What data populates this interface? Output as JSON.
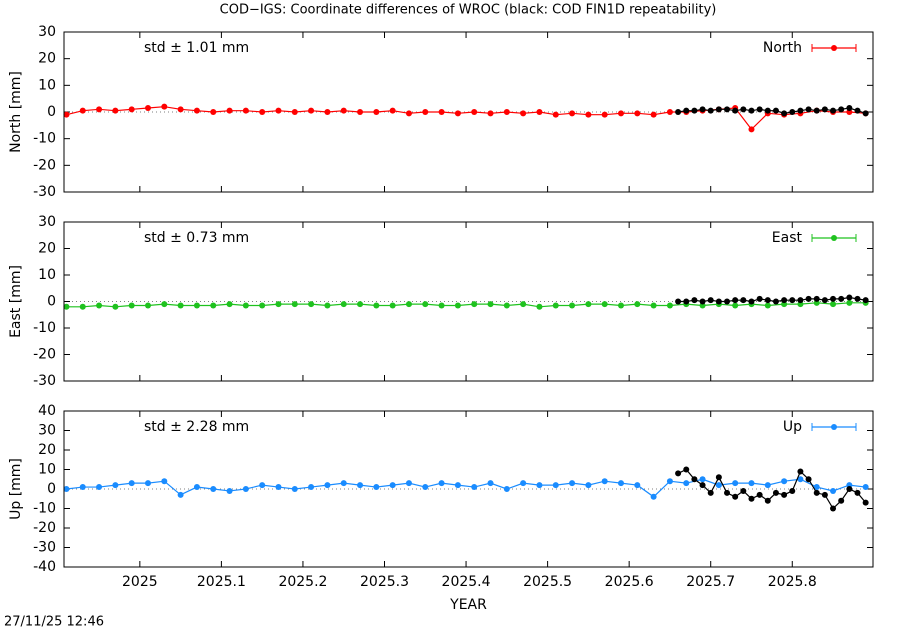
{
  "title": "COD−IGS: Coordinate differences of WROC (black: COD FIN1D repeatability)",
  "timestamp": "27/11/25 12:46",
  "chart_data": [
    {
      "type": "line",
      "ylabel": "North [mm]",
      "annotation": "std ± 1.01 mm",
      "legend": "top-right",
      "xlim": [
        2024.907,
        2025.899
      ],
      "ylim": [
        -30,
        30
      ],
      "yticks": [
        -30,
        -20,
        -10,
        0,
        10,
        20,
        30
      ],
      "series": [
        {
          "name": "North",
          "color": "#ff0000",
          "x": [
            2024.91,
            2024.93,
            2024.95,
            2024.97,
            2024.99,
            2025.01,
            2025.03,
            2025.05,
            2025.07,
            2025.09,
            2025.11,
            2025.13,
            2025.15,
            2025.17,
            2025.19,
            2025.21,
            2025.23,
            2025.25,
            2025.27,
            2025.29,
            2025.31,
            2025.33,
            2025.35,
            2025.37,
            2025.39,
            2025.41,
            2025.43,
            2025.45,
            2025.47,
            2025.49,
            2025.51,
            2025.53,
            2025.55,
            2025.57,
            2025.59,
            2025.61,
            2025.63,
            2025.65,
            2025.67,
            2025.69,
            2025.71,
            2025.73,
            2025.75,
            2025.77,
            2025.79,
            2025.81,
            2025.83,
            2025.85,
            2025.87,
            2025.89
          ],
          "values": [
            -1,
            0.5,
            1,
            0.5,
            1,
            1.5,
            2,
            1,
            0.5,
            0,
            0.5,
            0.5,
            0,
            0.5,
            0,
            0.5,
            0,
            0.5,
            0,
            0,
            0.5,
            -0.5,
            0,
            0,
            -0.5,
            0,
            -0.5,
            0,
            -0.5,
            0,
            -1,
            -0.5,
            -1,
            -1,
            -0.5,
            -0.5,
            -1,
            0,
            0,
            0.5,
            1,
            1.5,
            -6.5,
            -0.5,
            -1,
            -0.5,
            0.5,
            0,
            0,
            -0.5
          ]
        },
        {
          "color": "#000000",
          "x": [
            2025.66,
            2025.67,
            2025.68,
            2025.69,
            2025.7,
            2025.71,
            2025.72,
            2025.73,
            2025.74,
            2025.75,
            2025.76,
            2025.77,
            2025.78,
            2025.79,
            2025.8,
            2025.81,
            2025.82,
            2025.83,
            2025.84,
            2025.85,
            2025.86,
            2025.87,
            2025.88,
            2025.89
          ],
          "values": [
            0,
            0.5,
            0.5,
            1,
            0.5,
            1,
            1,
            0.5,
            1,
            0.5,
            1,
            0.5,
            0.5,
            -0.5,
            0,
            0.5,
            1,
            0.5,
            1,
            0.5,
            1,
            1.5,
            0.5,
            -0.5
          ]
        }
      ]
    },
    {
      "type": "line",
      "ylabel": "East [mm]",
      "annotation": "std ± 0.73 mm",
      "legend": "top-right",
      "xlim": [
        2024.907,
        2025.899
      ],
      "ylim": [
        -30,
        30
      ],
      "yticks": [
        -30,
        -20,
        -10,
        0,
        10,
        20,
        30
      ],
      "series": [
        {
          "name": "East",
          "color": "#1fc21f",
          "x": [
            2024.91,
            2024.93,
            2024.95,
            2024.97,
            2024.99,
            2025.01,
            2025.03,
            2025.05,
            2025.07,
            2025.09,
            2025.11,
            2025.13,
            2025.15,
            2025.17,
            2025.19,
            2025.21,
            2025.23,
            2025.25,
            2025.27,
            2025.29,
            2025.31,
            2025.33,
            2025.35,
            2025.37,
            2025.39,
            2025.41,
            2025.43,
            2025.45,
            2025.47,
            2025.49,
            2025.51,
            2025.53,
            2025.55,
            2025.57,
            2025.59,
            2025.61,
            2025.63,
            2025.65,
            2025.67,
            2025.69,
            2025.71,
            2025.73,
            2025.75,
            2025.77,
            2025.79,
            2025.81,
            2025.83,
            2025.85,
            2025.87,
            2025.89
          ],
          "values": [
            -2,
            -2,
            -1.5,
            -2,
            -1.5,
            -1.5,
            -1,
            -1.5,
            -1.5,
            -1.5,
            -1,
            -1.5,
            -1.5,
            -1,
            -1,
            -1,
            -1.5,
            -1,
            -1,
            -1.5,
            -1.5,
            -1,
            -1,
            -1.5,
            -1.5,
            -1,
            -1,
            -1.5,
            -1,
            -2,
            -1.5,
            -1.5,
            -1,
            -1,
            -1.5,
            -1,
            -1.5,
            -1.5,
            -1,
            -1.5,
            -1,
            -1.5,
            -1,
            -1.5,
            -1,
            -1,
            -0.5,
            -1,
            -0.5,
            -0.5
          ]
        },
        {
          "color": "#000000",
          "x": [
            2025.66,
            2025.67,
            2025.68,
            2025.69,
            2025.7,
            2025.71,
            2025.72,
            2025.73,
            2025.74,
            2025.75,
            2025.76,
            2025.77,
            2025.78,
            2025.79,
            2025.8,
            2025.81,
            2025.82,
            2025.83,
            2025.84,
            2025.85,
            2025.86,
            2025.87,
            2025.88,
            2025.89
          ],
          "values": [
            0,
            0,
            0.5,
            0,
            0.5,
            0,
            0,
            0.5,
            0.5,
            0,
            1,
            0.5,
            0,
            0.5,
            0.5,
            0.5,
            1,
            1,
            0.5,
            1,
            1,
            1.5,
            1,
            0.5
          ]
        }
      ]
    },
    {
      "type": "line",
      "ylabel": "Up [mm]",
      "annotation": "std ± 2.28 mm",
      "legend": "top-right",
      "xlabel": "YEAR",
      "xlim": [
        2024.907,
        2025.899
      ],
      "ylim": [
        -40,
        40
      ],
      "yticks": [
        -40,
        -30,
        -20,
        -10,
        0,
        10,
        20,
        30,
        40
      ],
      "xticks": [
        2025,
        2025.1,
        2025.2,
        2025.3,
        2025.4,
        2025.5,
        2025.6,
        2025.7,
        2025.8
      ],
      "series": [
        {
          "name": "Up",
          "color": "#1a8cff",
          "x": [
            2024.91,
            2024.93,
            2024.95,
            2024.97,
            2024.99,
            2025.01,
            2025.03,
            2025.05,
            2025.07,
            2025.09,
            2025.11,
            2025.13,
            2025.15,
            2025.17,
            2025.19,
            2025.21,
            2025.23,
            2025.25,
            2025.27,
            2025.29,
            2025.31,
            2025.33,
            2025.35,
            2025.37,
            2025.39,
            2025.41,
            2025.43,
            2025.45,
            2025.47,
            2025.49,
            2025.51,
            2025.53,
            2025.55,
            2025.57,
            2025.59,
            2025.61,
            2025.63,
            2025.65,
            2025.67,
            2025.69,
            2025.71,
            2025.73,
            2025.75,
            2025.77,
            2025.79,
            2025.81,
            2025.83,
            2025.85,
            2025.87,
            2025.89
          ],
          "values": [
            0,
            1,
            1,
            2,
            3,
            3,
            4,
            -3,
            1,
            0,
            -1,
            0,
            2,
            1,
            0,
            1,
            2,
            3,
            2,
            1,
            2,
            3,
            1,
            3,
            2,
            1,
            3,
            0,
            3,
            2,
            2,
            3,
            2,
            4,
            3,
            2,
            -4,
            4,
            3,
            5,
            2,
            3,
            3,
            2,
            4,
            5,
            1,
            -1,
            2,
            1
          ]
        },
        {
          "color": "#000000",
          "x": [
            2025.66,
            2025.67,
            2025.68,
            2025.69,
            2025.7,
            2025.71,
            2025.72,
            2025.73,
            2025.74,
            2025.75,
            2025.76,
            2025.77,
            2025.78,
            2025.79,
            2025.8,
            2025.81,
            2025.82,
            2025.83,
            2025.84,
            2025.85,
            2025.86,
            2025.87,
            2025.88,
            2025.89
          ],
          "values": [
            8,
            10,
            5,
            2,
            -2,
            6,
            -2,
            -4,
            -1,
            -5,
            -3,
            -6,
            -2,
            -3,
            -1,
            9,
            5,
            -2,
            -3,
            -10,
            -6,
            0,
            -2,
            -7
          ]
        }
      ]
    }
  ]
}
